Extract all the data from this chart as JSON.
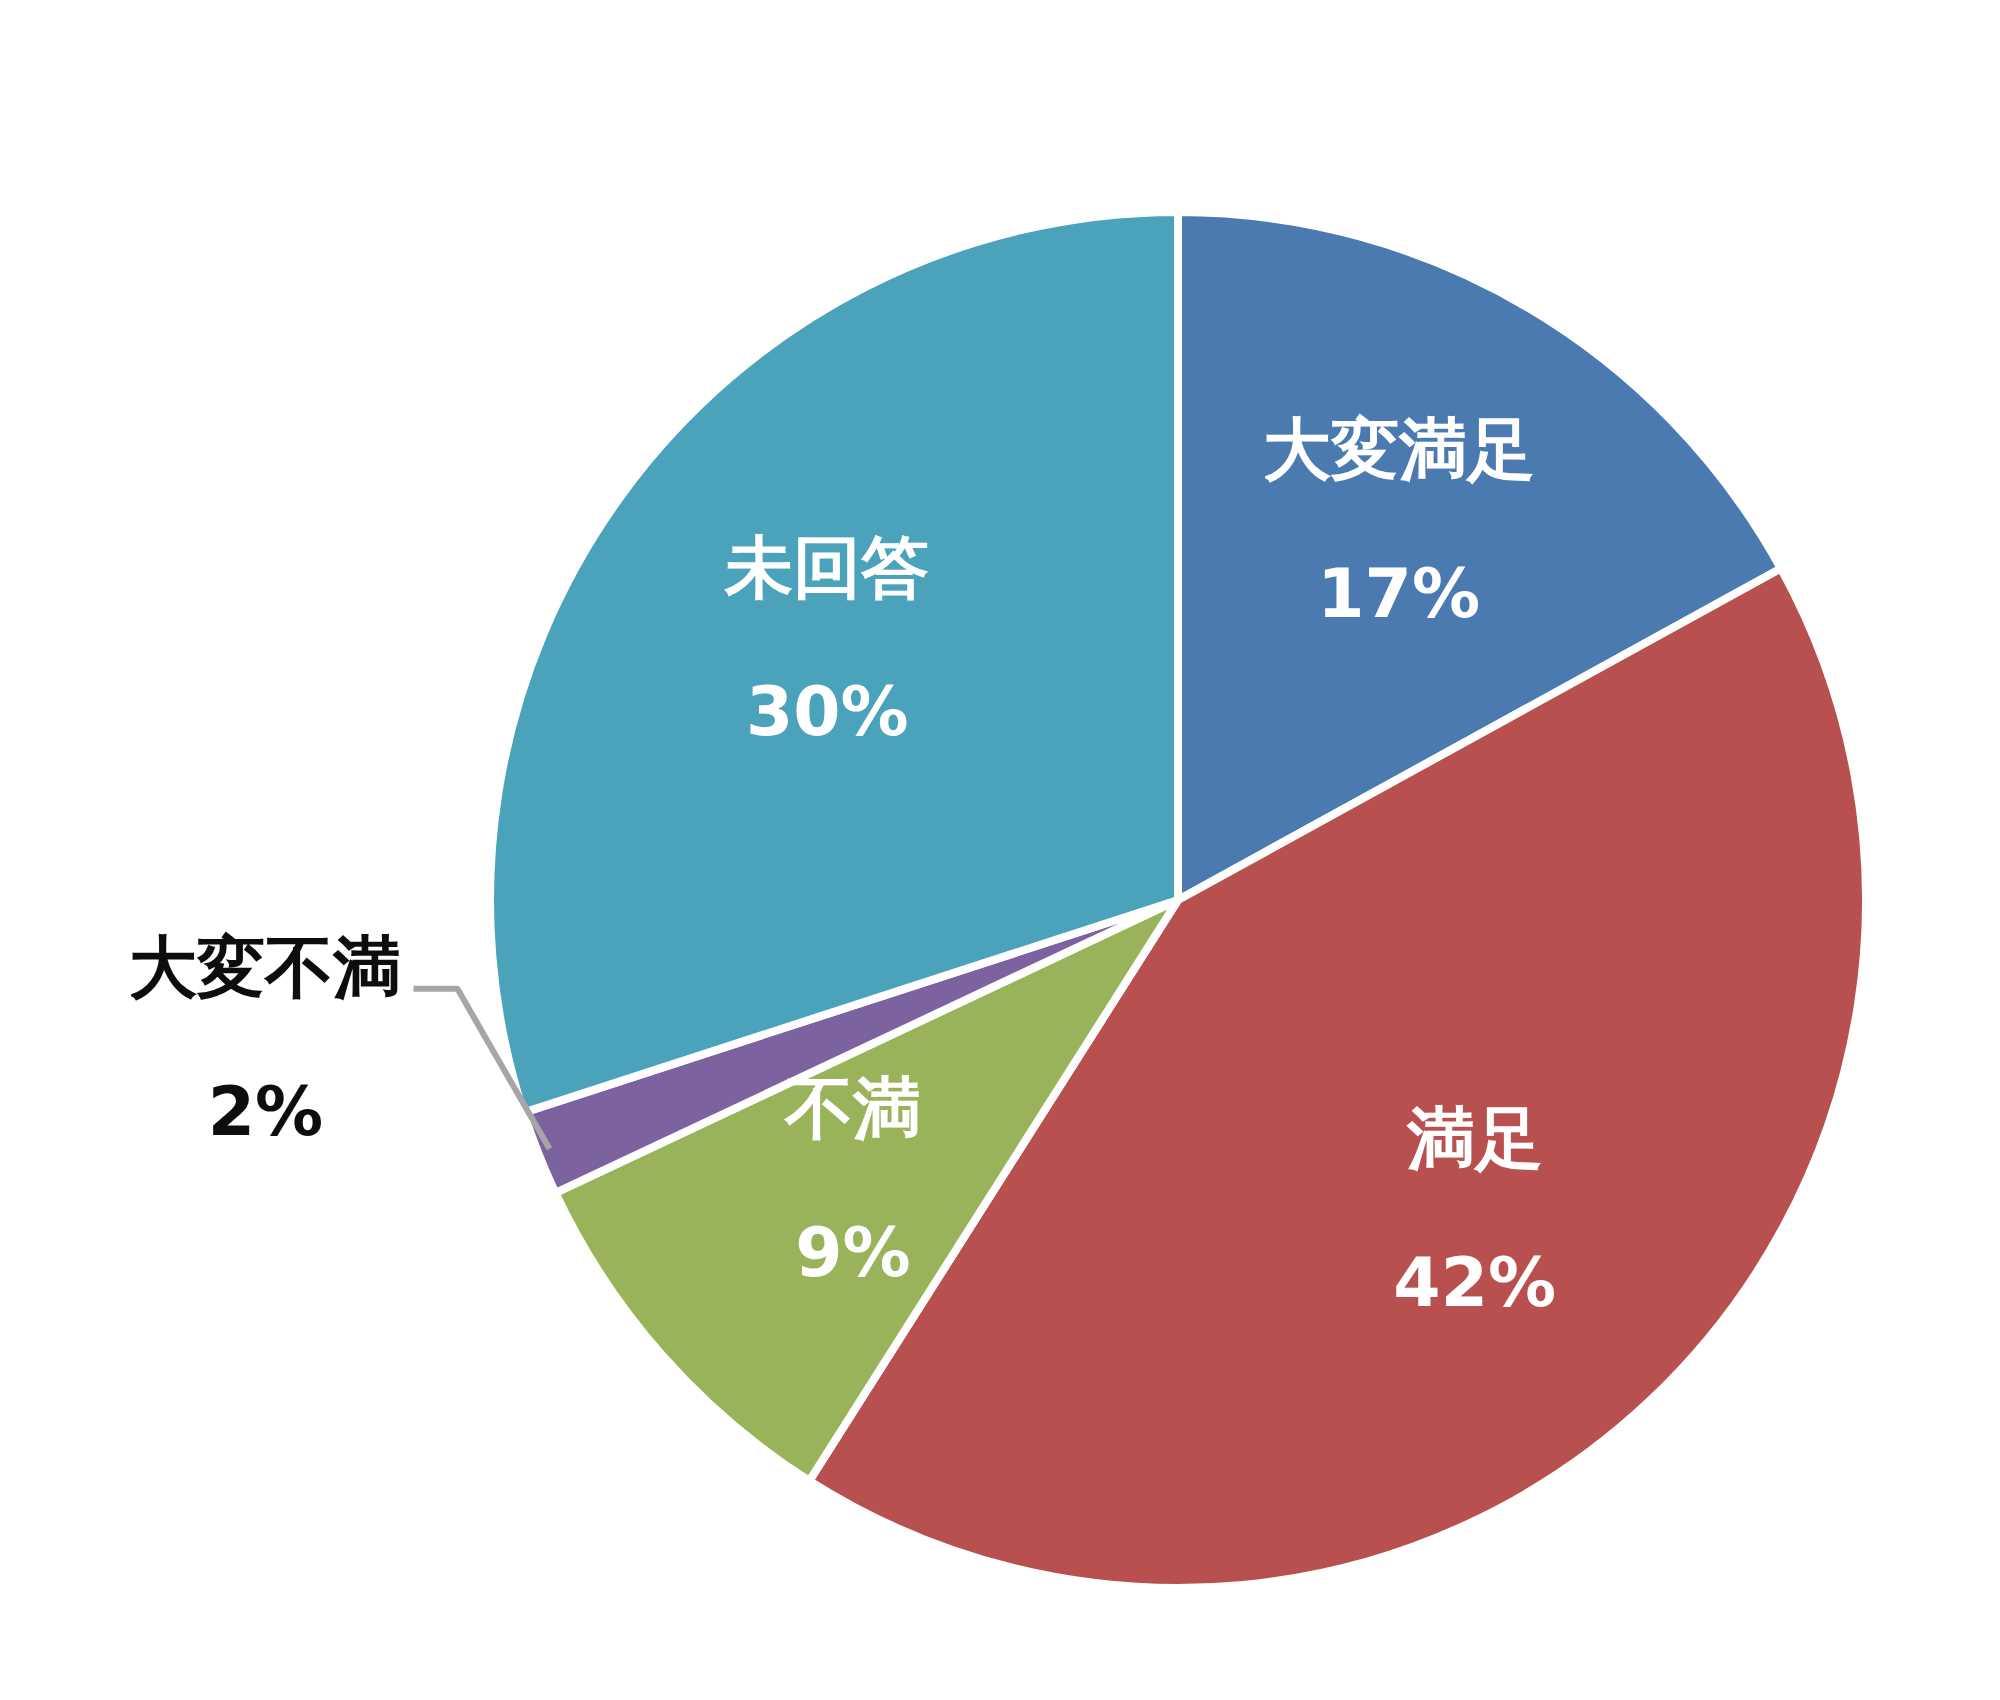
{
  "chart_data": {
    "type": "pie",
    "categories": [
      "大変満足",
      "満足",
      "不満",
      "大変不満",
      "未回答"
    ],
    "values": [
      17,
      42,
      9,
      2,
      30
    ],
    "colors": [
      "#4a7ab0",
      "#b85050",
      "#98b35a",
      "#7d62a0",
      "#4aa2bb"
    ],
    "value_labels": [
      "17%",
      "42%",
      "9%",
      "2%",
      "30%"
    ]
  }
}
